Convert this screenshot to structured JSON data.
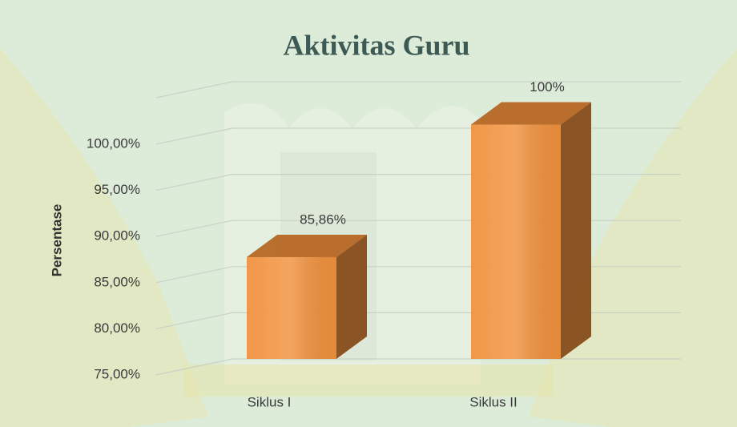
{
  "chart_data": {
    "type": "bar3d",
    "title": "Aktivitas Guru",
    "y_label": "Persentase",
    "categories": [
      "Siklus I",
      "Siklus II"
    ],
    "values": [
      85.86,
      100
    ],
    "value_labels": [
      "85,86%",
      "100%"
    ],
    "color": "#f28a30",
    "ylim": [
      75,
      105
    ],
    "yticks": [
      {
        "value": 75,
        "label": "75,00%"
      },
      {
        "value": 80,
        "label": "80,00%"
      },
      {
        "value": 85,
        "label": "85,00%"
      },
      {
        "value": 90,
        "label": "90,00%"
      },
      {
        "value": 95,
        "label": "95,00%"
      },
      {
        "value": 100,
        "label": "100,00%"
      }
    ],
    "grid": true
  }
}
